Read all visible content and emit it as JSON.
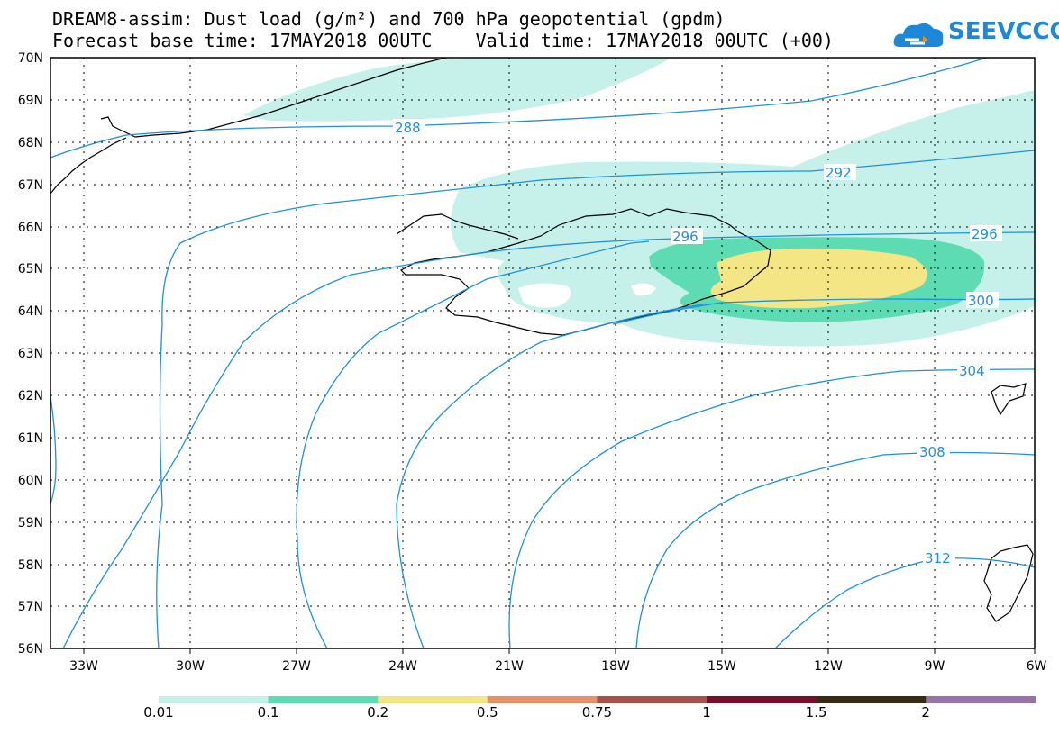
{
  "title": {
    "line1": "DREAM8-assim: Dust load (g/m²) and 700 hPa geopotential (gpdm)",
    "line2": "Forecast base time: 17MAY2018 00UTC    Valid time: 17MAY2018 00UTC (+00)"
  },
  "logo": {
    "text": "SEEVCCC",
    "icon": "cloud-icon",
    "color": "#1e88d8"
  },
  "axes": {
    "lat_labels": [
      "70N",
      "69N",
      "68N",
      "67N",
      "66N",
      "65N",
      "64N",
      "63N",
      "62N",
      "61N",
      "60N",
      "59N",
      "58N",
      "57N",
      "56N"
    ],
    "lon_labels": [
      "33W",
      "30W",
      "27W",
      "24W",
      "21W",
      "18W",
      "15W",
      "12W",
      "9W",
      "6W"
    ]
  },
  "contours": {
    "color": "#1e90e0",
    "labels": [
      "288",
      "292",
      "296",
      "296",
      "300",
      "304",
      "308",
      "312",
      "288"
    ]
  },
  "legend": {
    "colors": [
      "#c6f0ea",
      "#5ddcb4",
      "#f5e685",
      "#e8906a",
      "#a8504c",
      "#7a0c2c",
      "#3a2a12",
      "#9a70a8"
    ],
    "labels": [
      "0.01",
      "0.1",
      "0.2",
      "0.5",
      "0.75",
      "1",
      "1.5",
      "2"
    ]
  }
}
